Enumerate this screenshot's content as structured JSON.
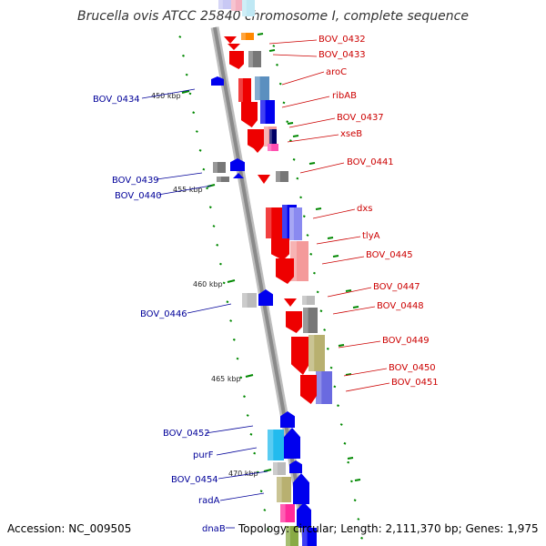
{
  "title": "Brucella ovis ATCC 25840 chromosome I, complete sequence",
  "accession": "Accession: NC_009505",
  "summary": "Topology: circular; Length: 2,111,370 bp; Genes: 1,975",
  "colors": {
    "forward_label": "#cc0000",
    "reverse_label": "#000099",
    "backbone": "#9a9a9a",
    "tick": "#008800"
  },
  "scale_marks": [
    {
      "label": "450 kbp"
    },
    {
      "label": "455 kbp"
    },
    {
      "label": "460 kbp"
    },
    {
      "label": "465 kbp"
    },
    {
      "label": "470 kbp"
    }
  ],
  "forward_gene_labels": [
    {
      "label": "BOV_0432"
    },
    {
      "label": "BOV_0433"
    },
    {
      "label": "aroC"
    },
    {
      "label": "ribAB"
    },
    {
      "label": "BOV_0437"
    },
    {
      "label": "xseB"
    },
    {
      "label": "BOV_0441"
    },
    {
      "label": "dxs"
    },
    {
      "label": "tlyA"
    },
    {
      "label": "BOV_0445"
    },
    {
      "label": "BOV_0447"
    },
    {
      "label": "BOV_0448"
    },
    {
      "label": "BOV_0449"
    },
    {
      "label": "BOV_0450"
    },
    {
      "label": "BOV_0451"
    }
  ],
  "reverse_gene_labels": [
    {
      "label": "BOV_0434"
    },
    {
      "label": "BOV_0439"
    },
    {
      "label": "BOV_0440"
    },
    {
      "label": "BOV_0446"
    },
    {
      "label": "BOV_0452"
    },
    {
      "label": "purF"
    },
    {
      "label": "BOV_0454"
    },
    {
      "label": "radA"
    },
    {
      "label": "dnaB"
    }
  ]
}
